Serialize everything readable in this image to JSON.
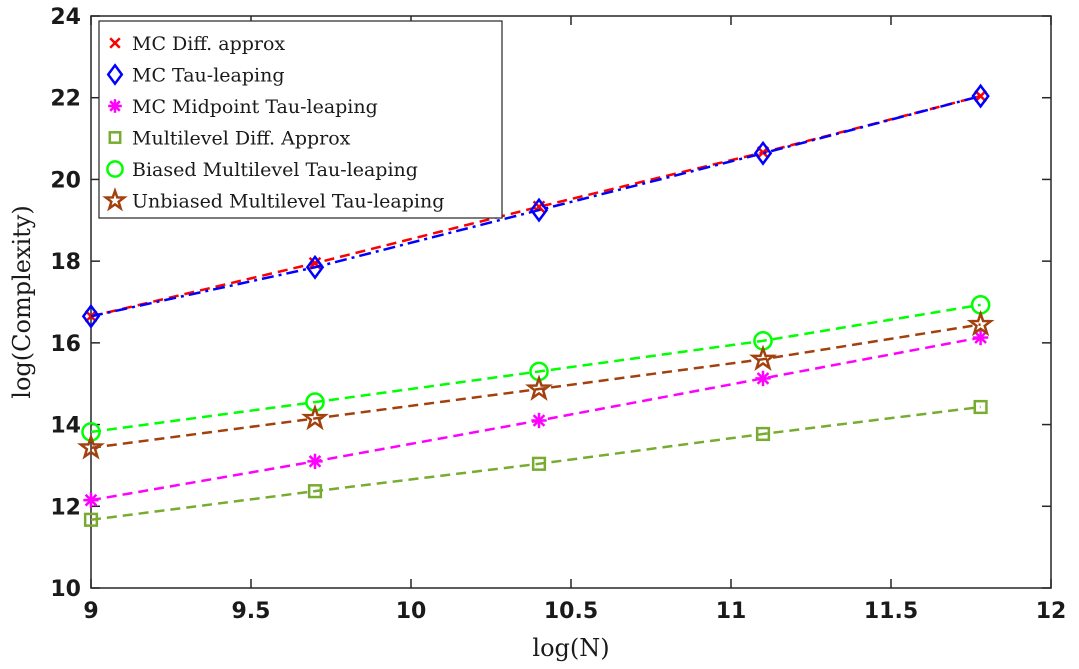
{
  "chart_data": {
    "type": "line",
    "title": "",
    "xlabel": "log(N)",
    "ylabel": "log(Complexity)",
    "xlim": [
      9,
      12
    ],
    "ylim": [
      10,
      24
    ],
    "xticks": [
      "9",
      "9.5",
      "10",
      "10.5",
      "11",
      "11.5",
      "12"
    ],
    "yticks": [
      "10",
      "12",
      "14",
      "16",
      "18",
      "20",
      "22",
      "24"
    ],
    "grid": false,
    "legend_position": "top-left",
    "x": [
      9.0,
      9.7,
      10.4,
      11.1,
      11.78
    ],
    "series": [
      {
        "name": "MC Diff. approx",
        "values": [
          16.65,
          17.95,
          19.33,
          20.66,
          22.04
        ],
        "color": "#ff0000",
        "marker": "x",
        "dash": "dashed"
      },
      {
        "name": "MC Tau-leaping",
        "values": [
          16.65,
          17.85,
          19.25,
          20.64,
          22.04
        ],
        "color": "#0000ff",
        "marker": "diamond",
        "dash": "dashdot"
      },
      {
        "name": "MC Midpoint Tau-leaping",
        "values": [
          12.15,
          13.1,
          14.1,
          15.13,
          16.13
        ],
        "color": "#ff00ff",
        "marker": "asterisk",
        "dash": "dashed"
      },
      {
        "name": "Multilevel Diff. Approx",
        "values": [
          11.67,
          12.37,
          13.04,
          13.77,
          14.43
        ],
        "color": "#77ac30",
        "marker": "square",
        "dash": "dashed"
      },
      {
        "name": "Biased Multilevel Tau-leaping",
        "values": [
          13.82,
          14.55,
          15.3,
          16.05,
          16.93
        ],
        "color": "#00ff00",
        "marker": "circle",
        "dash": "dashed"
      },
      {
        "name": "Unbiased Multilevel Tau-leaping",
        "values": [
          13.43,
          14.15,
          14.87,
          15.6,
          16.45
        ],
        "color": "#a2400e",
        "marker": "star",
        "dash": "dashed"
      }
    ]
  }
}
